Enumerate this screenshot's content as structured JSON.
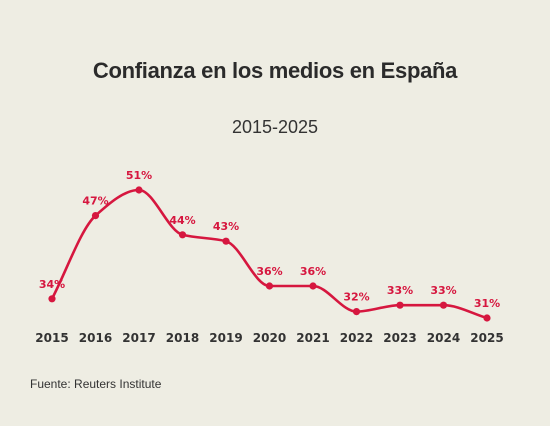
{
  "chart_data": {
    "type": "line",
    "title": "Confianza en los medios en España",
    "subtitle": "2015-2025",
    "source": "Fuente: Reuters Institute",
    "categories": [
      "2015",
      "2016",
      "2017",
      "2018",
      "2019",
      "2020",
      "2021",
      "2022",
      "2023",
      "2024",
      "2025"
    ],
    "values": [
      34,
      47,
      51,
      44,
      43,
      36,
      36,
      32,
      33,
      33,
      31
    ],
    "data_labels": [
      "34%",
      "47%",
      "51%",
      "44%",
      "43%",
      "36%",
      "36%",
      "32%",
      "33%",
      "33%",
      "31%"
    ],
    "line_color": "#d6173f",
    "background": "#eeede3",
    "grid": false,
    "legend": "none"
  }
}
